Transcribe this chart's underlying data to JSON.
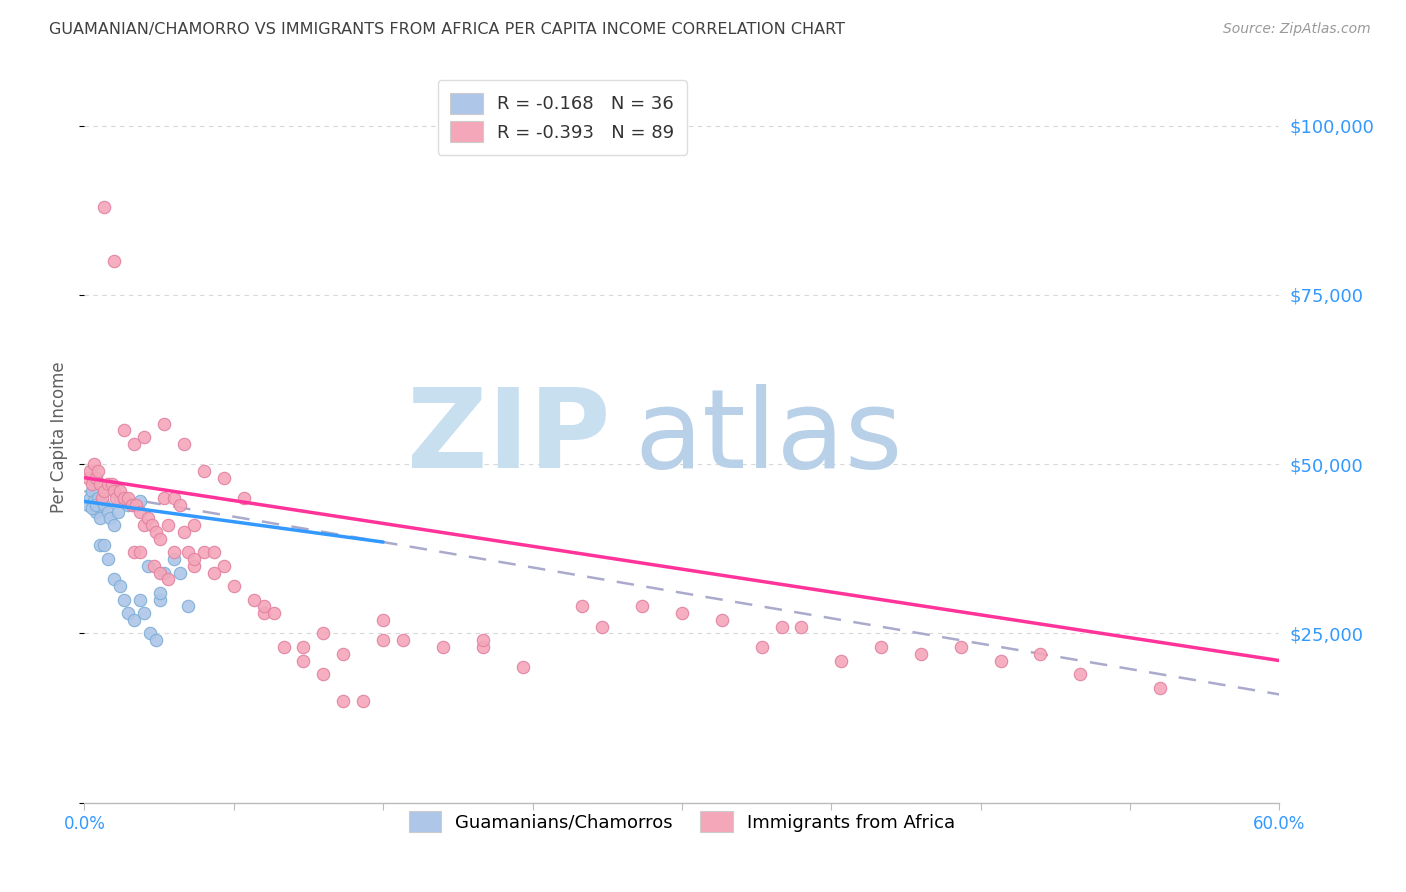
{
  "title": "GUAMANIAN/CHAMORRO VS IMMIGRANTS FROM AFRICA PER CAPITA INCOME CORRELATION CHART",
  "source": "Source: ZipAtlas.com",
  "ylabel": "Per Capita Income",
  "yticks": [
    0,
    25000,
    50000,
    75000,
    100000
  ],
  "ytick_labels": [
    "",
    "$25,000",
    "$50,000",
    "$75,000",
    "$100,000"
  ],
  "xlim": [
    0.0,
    0.6
  ],
  "ylim": [
    0,
    108000
  ],
  "xticks": [
    0.0,
    0.075,
    0.15,
    0.225,
    0.3,
    0.375,
    0.45,
    0.525,
    0.6
  ],
  "legend_entries": [
    {
      "label_r": "R = ",
      "r_val": "-0.168",
      "label_n": "   N = ",
      "n_val": "36",
      "color": "#aec6e8"
    },
    {
      "label_r": "R = ",
      "r_val": "-0.393",
      "label_n": "   N = ",
      "n_val": "89",
      "color": "#f4a7b9"
    }
  ],
  "legend_bottom": [
    {
      "label": "Guamanians/Chamorros",
      "color": "#aec6e8"
    },
    {
      "label": "Immigrants from Africa",
      "color": "#f4a7b9"
    }
  ],
  "blue_scatter_x": [
    0.002,
    0.003,
    0.004,
    0.005,
    0.006,
    0.007,
    0.004,
    0.006,
    0.008,
    0.01,
    0.012,
    0.013,
    0.015,
    0.017,
    0.008,
    0.01,
    0.012,
    0.015,
    0.018,
    0.02,
    0.022,
    0.025,
    0.028,
    0.03,
    0.033,
    0.036,
    0.038,
    0.04,
    0.045,
    0.048,
    0.052,
    0.018,
    0.022,
    0.028,
    0.032,
    0.038
  ],
  "blue_scatter_y": [
    44000,
    45000,
    46000,
    44500,
    43000,
    45000,
    43500,
    44000,
    42000,
    44000,
    43000,
    42000,
    41000,
    43000,
    38000,
    38000,
    36000,
    33000,
    32000,
    30000,
    28000,
    27000,
    30000,
    28000,
    25000,
    24000,
    30000,
    34000,
    36000,
    34000,
    29000,
    44500,
    44000,
    44500,
    35000,
    31000
  ],
  "pink_scatter_x": [
    0.002,
    0.003,
    0.004,
    0.005,
    0.006,
    0.007,
    0.008,
    0.009,
    0.01,
    0.012,
    0.014,
    0.015,
    0.016,
    0.018,
    0.02,
    0.022,
    0.024,
    0.026,
    0.028,
    0.03,
    0.032,
    0.034,
    0.036,
    0.038,
    0.04,
    0.042,
    0.045,
    0.048,
    0.05,
    0.055,
    0.06,
    0.065,
    0.07,
    0.08,
    0.09,
    0.1,
    0.11,
    0.12,
    0.13,
    0.14,
    0.15,
    0.16,
    0.18,
    0.2,
    0.22,
    0.25,
    0.28,
    0.32,
    0.36,
    0.4,
    0.44,
    0.48,
    0.01,
    0.015,
    0.02,
    0.025,
    0.03,
    0.04,
    0.05,
    0.06,
    0.07,
    0.3,
    0.35,
    0.26,
    0.15,
    0.2,
    0.09,
    0.12,
    0.025,
    0.035,
    0.045,
    0.055,
    0.065,
    0.075,
    0.085,
    0.095,
    0.11,
    0.13,
    0.34,
    0.38,
    0.42,
    0.46,
    0.5,
    0.54,
    0.038,
    0.042,
    0.028,
    0.052,
    0.055
  ],
  "pink_scatter_y": [
    48000,
    49000,
    47000,
    50000,
    48000,
    49000,
    47000,
    45000,
    46000,
    47000,
    47000,
    46000,
    45000,
    46000,
    45000,
    45000,
    44000,
    44000,
    43000,
    41000,
    42000,
    41000,
    40000,
    39000,
    45000,
    41000,
    45000,
    44000,
    40000,
    41000,
    37000,
    37000,
    35000,
    45000,
    28000,
    23000,
    21000,
    19000,
    15000,
    15000,
    27000,
    24000,
    23000,
    23000,
    20000,
    29000,
    29000,
    27000,
    26000,
    23000,
    23000,
    22000,
    88000,
    80000,
    55000,
    53000,
    54000,
    56000,
    53000,
    49000,
    48000,
    28000,
    26000,
    26000,
    24000,
    24000,
    29000,
    25000,
    37000,
    35000,
    37000,
    35000,
    34000,
    32000,
    30000,
    28000,
    23000,
    22000,
    23000,
    21000,
    22000,
    21000,
    19000,
    17000,
    34000,
    33000,
    37000,
    37000,
    36000
  ],
  "blue_line_x": [
    0.0,
    0.15
  ],
  "blue_line_y": [
    44500,
    38500
  ],
  "pink_line_x": [
    0.0,
    0.6
  ],
  "pink_line_y": [
    48000,
    21000
  ],
  "dashed_line_x": [
    0.0,
    0.6
  ],
  "dashed_line_y": [
    46000,
    16000
  ],
  "background_color": "#ffffff",
  "grid_color": "#d8d8d8",
  "title_color": "#404040",
  "axis_label_color": "#606060",
  "ytick_color": "#3399ff",
  "watermark_zip_color": "#c8dff0",
  "watermark_atlas_color": "#b8d0e8"
}
